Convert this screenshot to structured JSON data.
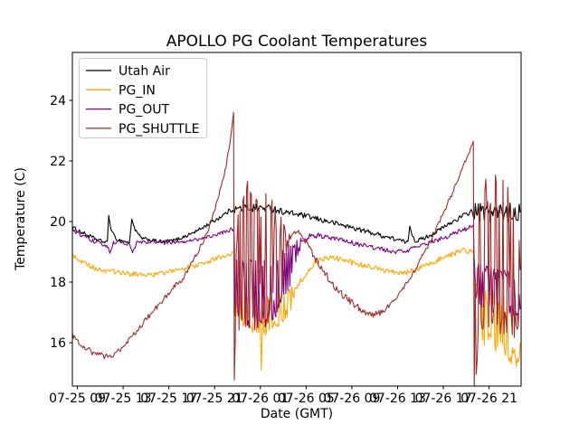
{
  "chart_data": {
    "type": "line",
    "title": "APOLLO PG Coolant Temperatures",
    "xlabel": "Date (GMT)",
    "ylabel": "Temperature (C)",
    "x_encoding": "hours after 07-25 00:00 GMT",
    "xlim": [
      8.56,
      47.8
    ],
    "ylim": [
      14.57,
      25.58
    ],
    "grid": false,
    "legend_position": "upper left",
    "background_color": "#ffffff",
    "frame_color": "#000000",
    "legend_border_color": "#cccccc",
    "yticks": [
      16,
      18,
      20,
      22,
      24
    ],
    "xticks": [
      {
        "t": 9,
        "label": "07-25 09"
      },
      {
        "t": 13,
        "label": "07-25 13"
      },
      {
        "t": 17,
        "label": "07-25 17"
      },
      {
        "t": 21,
        "label": "07-25 21"
      },
      {
        "t": 25,
        "label": "07-26 01"
      },
      {
        "t": 29,
        "label": "07-26 05"
      },
      {
        "t": 33,
        "label": "07-26 09"
      },
      {
        "t": 37,
        "label": "07-26 13"
      },
      {
        "t": 41,
        "label": "07-26 17"
      },
      {
        "t": 45,
        "label": "07-26 21"
      }
    ],
    "series": [
      {
        "name": "Utah Air",
        "color": "#000000",
        "points": [
          [
            8.56,
            19.8,
            0.07
          ],
          [
            9.6,
            19.6,
            0.07
          ],
          [
            10.6,
            19.42,
            0.06
          ],
          [
            11.4,
            19.32,
            0.05
          ],
          [
            11.62,
            19.35,
            0
          ],
          [
            11.74,
            20.2,
            0
          ],
          [
            11.9,
            19.8,
            0.04
          ],
          [
            12.35,
            19.42,
            0.05
          ],
          [
            13.55,
            19.3,
            0.05
          ],
          [
            13.76,
            20.08,
            0
          ],
          [
            14.05,
            19.72,
            0.04
          ],
          [
            14.6,
            19.45,
            0.05
          ],
          [
            15.5,
            19.38,
            0.06
          ],
          [
            16.5,
            19.33,
            0.06
          ],
          [
            17.5,
            19.38,
            0.06
          ],
          [
            18.5,
            19.52,
            0.06
          ],
          [
            19.5,
            19.7,
            0.06
          ],
          [
            20.5,
            19.92,
            0.06
          ],
          [
            21.5,
            20.15,
            0.07
          ],
          [
            22.4,
            20.38,
            0.08
          ],
          [
            23.0,
            20.42,
            0.14
          ],
          [
            24.0,
            20.45,
            0.14
          ],
          [
            25.0,
            20.45,
            0.14
          ],
          [
            26.2,
            20.42,
            0.12
          ],
          [
            27.0,
            20.32,
            0.1
          ],
          [
            28.5,
            20.22,
            0.09
          ],
          [
            30.0,
            20.08,
            0.09
          ],
          [
            31.5,
            19.95,
            0.08
          ],
          [
            33.0,
            19.8,
            0.08
          ],
          [
            34.5,
            19.65,
            0.08
          ],
          [
            36.0,
            19.5,
            0.08
          ],
          [
            37.2,
            19.38,
            0.07
          ],
          [
            37.9,
            19.3,
            0.06
          ],
          [
            38.06,
            19.85,
            0
          ],
          [
            38.25,
            19.6,
            0.05
          ],
          [
            38.55,
            19.35,
            0.06
          ],
          [
            39.3,
            19.45,
            0.07
          ],
          [
            40.2,
            19.62,
            0.07
          ],
          [
            41.2,
            19.85,
            0.07
          ],
          [
            42.2,
            20.08,
            0.08
          ],
          [
            43.2,
            20.28,
            0.09
          ],
          [
            43.8,
            20.3,
            0.3
          ],
          [
            45.0,
            20.3,
            0.32
          ],
          [
            46.0,
            20.28,
            0.32
          ],
          [
            47.0,
            20.3,
            0.32
          ],
          [
            47.72,
            20.3,
            0.3
          ]
        ]
      },
      {
        "name": "PG_IN",
        "color": "#ffa500",
        "points": [
          [
            8.56,
            18.9,
            0.08
          ],
          [
            9.6,
            18.62,
            0.08
          ],
          [
            10.6,
            18.45,
            0.08
          ],
          [
            11.6,
            18.35,
            0.08
          ],
          [
            12.6,
            18.32,
            0.09
          ],
          [
            13.6,
            18.28,
            0.09
          ],
          [
            14.6,
            18.25,
            0.08
          ],
          [
            15.6,
            18.25,
            0.08
          ],
          [
            16.6,
            18.3,
            0.08
          ],
          [
            17.6,
            18.38,
            0.08
          ],
          [
            18.6,
            18.48,
            0.08
          ],
          [
            19.6,
            18.58,
            0.08
          ],
          [
            20.6,
            18.7,
            0.08
          ],
          [
            21.6,
            18.85,
            0.08
          ],
          [
            22.45,
            18.95,
            0.09
          ],
          [
            22.68,
            18.98,
            0
          ],
          [
            22.78,
            17.4,
            0.55
          ],
          [
            23.5,
            17.05,
            0.55
          ],
          [
            24.5,
            16.9,
            0.6
          ],
          [
            25.02,
            16.6,
            0.6
          ],
          [
            25.08,
            15.1,
            0
          ],
          [
            25.15,
            16.7,
            0.6
          ],
          [
            25.6,
            16.92,
            0.58
          ],
          [
            26.5,
            17.05,
            0.55
          ],
          [
            27.5,
            17.35,
            0.5
          ],
          [
            28.1,
            17.75,
            0.3
          ],
          [
            28.6,
            18.05,
            0.12
          ],
          [
            29.3,
            18.45,
            0.09
          ],
          [
            30.1,
            18.7,
            0.09
          ],
          [
            30.8,
            18.82,
            0.09
          ],
          [
            31.8,
            18.78,
            0.09
          ],
          [
            33.0,
            18.65,
            0.09
          ],
          [
            34.5,
            18.5,
            0.09
          ],
          [
            36.0,
            18.38,
            0.09
          ],
          [
            37.2,
            18.3,
            0.09
          ],
          [
            38.2,
            18.35,
            0.09
          ],
          [
            39.2,
            18.5,
            0.09
          ],
          [
            40.2,
            18.68,
            0.09
          ],
          [
            41.2,
            18.85,
            0.09
          ],
          [
            42.2,
            18.98,
            0.09
          ],
          [
            43.3,
            19.05,
            0.1
          ],
          [
            43.64,
            19.0,
            0
          ],
          [
            43.75,
            17.2,
            0.9
          ],
          [
            44.5,
            16.8,
            0.95
          ],
          [
            45.5,
            16.7,
            1.0
          ],
          [
            46.5,
            16.5,
            1.05
          ],
          [
            47.3,
            16.3,
            1.1
          ],
          [
            47.72,
            16.0,
            1.0
          ]
        ]
      },
      {
        "name": "PG_OUT",
        "color": "#800080",
        "points": [
          [
            8.56,
            19.72,
            0.07
          ],
          [
            9.6,
            19.5,
            0.07
          ],
          [
            10.6,
            19.33,
            0.06
          ],
          [
            11.4,
            19.22,
            0.06
          ],
          [
            11.7,
            19.12,
            0.04
          ],
          [
            11.85,
            18.95,
            0
          ],
          [
            12.15,
            19.3,
            0.05
          ],
          [
            12.9,
            19.32,
            0.06
          ],
          [
            13.6,
            19.22,
            0.05
          ],
          [
            13.82,
            18.97,
            0
          ],
          [
            14.2,
            19.3,
            0.06
          ],
          [
            15.2,
            19.32,
            0.06
          ],
          [
            16.2,
            19.3,
            0.06
          ],
          [
            17.2,
            19.3,
            0.06
          ],
          [
            18.2,
            19.33,
            0.06
          ],
          [
            19.2,
            19.38,
            0.06
          ],
          [
            20.2,
            19.48,
            0.06
          ],
          [
            21.2,
            19.58,
            0.06
          ],
          [
            22.2,
            19.7,
            0.07
          ],
          [
            22.68,
            19.75,
            0.08
          ],
          [
            22.78,
            17.9,
            1.1
          ],
          [
            23.6,
            17.65,
            1.2
          ],
          [
            24.6,
            17.55,
            1.2
          ],
          [
            25.6,
            17.65,
            1.1
          ],
          [
            26.6,
            17.95,
            1.0
          ],
          [
            27.4,
            18.35,
            0.85
          ],
          [
            28.1,
            18.95,
            0.45
          ],
          [
            28.7,
            19.35,
            0.15
          ],
          [
            29.4,
            19.55,
            0.09
          ],
          [
            30.4,
            19.52,
            0.09
          ],
          [
            31.6,
            19.42,
            0.08
          ],
          [
            33.0,
            19.3,
            0.08
          ],
          [
            34.5,
            19.18,
            0.08
          ],
          [
            36.0,
            19.05,
            0.08
          ],
          [
            37.0,
            19.0,
            0.08
          ],
          [
            38.2,
            19.08,
            0.08
          ],
          [
            39.2,
            19.22,
            0.08
          ],
          [
            40.2,
            19.35,
            0.08
          ],
          [
            41.3,
            19.5,
            0.08
          ],
          [
            42.3,
            19.65,
            0.08
          ],
          [
            43.3,
            19.8,
            0.09
          ],
          [
            43.62,
            19.88,
            0
          ],
          [
            43.75,
            18.1,
            0.75
          ],
          [
            44.6,
            17.85,
            0.75
          ],
          [
            45.6,
            17.7,
            0.78
          ],
          [
            46.6,
            17.6,
            0.8
          ],
          [
            47.3,
            17.5,
            0.8
          ],
          [
            47.72,
            17.1,
            0.7
          ]
        ]
      },
      {
        "name": "PG_SHUTTLE",
        "color": "#a52a2a",
        "points": [
          [
            8.56,
            16.25,
            0.1
          ],
          [
            9.3,
            15.95,
            0.1
          ],
          [
            10.2,
            15.7,
            0.1
          ],
          [
            11.0,
            15.58,
            0.1
          ],
          [
            11.8,
            15.55,
            0.09
          ],
          [
            12.5,
            15.68,
            0.09
          ],
          [
            13.3,
            15.98,
            0.09
          ],
          [
            14.2,
            16.4,
            0.09
          ],
          [
            15.2,
            16.85,
            0.09
          ],
          [
            16.2,
            17.3,
            0.09
          ],
          [
            17.2,
            17.75,
            0.09
          ],
          [
            18.2,
            18.1,
            0.09
          ],
          [
            19.2,
            18.75,
            0.09
          ],
          [
            20.2,
            19.5,
            0.09
          ],
          [
            21.2,
            20.6,
            0.08
          ],
          [
            22.0,
            21.8,
            0.07
          ],
          [
            22.45,
            22.9,
            0.05
          ],
          [
            22.66,
            23.6,
            0
          ],
          [
            22.72,
            16.9,
            2.3
          ],
          [
            23.3,
            18.9,
            2.45
          ],
          [
            24.3,
            18.9,
            2.45
          ],
          [
            25.3,
            18.75,
            2.35
          ],
          [
            26.2,
            18.6,
            2.1
          ],
          [
            26.9,
            18.9,
            1.3
          ],
          [
            27.35,
            19.35,
            0.25
          ],
          [
            27.8,
            19.6,
            0.1
          ],
          [
            28.25,
            19.72,
            0.1
          ],
          [
            29.0,
            19.3,
            0.12
          ],
          [
            30.0,
            18.65,
            0.12
          ],
          [
            31.0,
            18.1,
            0.12
          ],
          [
            32.0,
            17.65,
            0.12
          ],
          [
            33.2,
            17.25,
            0.12
          ],
          [
            34.2,
            17.0,
            0.1
          ],
          [
            34.95,
            16.92,
            0.1
          ],
          [
            35.8,
            17.05,
            0.1
          ],
          [
            36.8,
            17.4,
            0.09
          ],
          [
            37.8,
            17.95,
            0.09
          ],
          [
            38.8,
            18.6,
            0.08
          ],
          [
            39.8,
            19.3,
            0.08
          ],
          [
            40.8,
            20.1,
            0.08
          ],
          [
            41.8,
            20.95,
            0.07
          ],
          [
            42.7,
            21.8,
            0.06
          ],
          [
            43.3,
            22.3,
            0.05
          ],
          [
            43.62,
            22.65,
            0
          ],
          [
            43.7,
            16.4,
            2.1
          ],
          [
            44.3,
            18.9,
            2.5
          ],
          [
            45.3,
            19.0,
            2.6
          ],
          [
            46.3,
            18.8,
            2.6
          ],
          [
            47.2,
            18.7,
            2.6
          ],
          [
            47.72,
            18.4,
            2.4
          ]
        ]
      }
    ]
  }
}
